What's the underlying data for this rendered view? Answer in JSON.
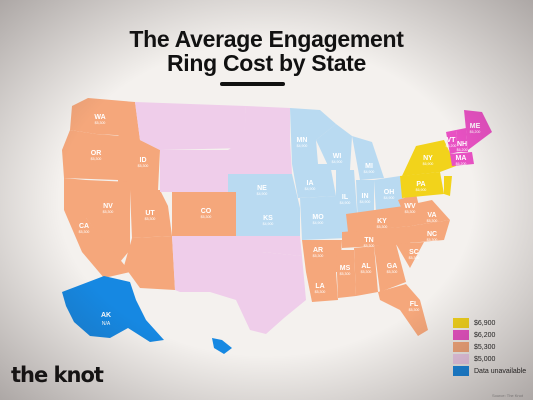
{
  "title_line1": "The Average Engagement",
  "title_line2": "Ring Cost by State",
  "brand": "the knot",
  "credit": "Source: The Knot",
  "colors": {
    "c6900": "#f2d31b",
    "c6200": "#e851c3",
    "c5300": "#f5a77b",
    "c5000": "#efcdea",
    "c4900": "#b9daf1",
    "cna": "#1688e2"
  },
  "legend": [
    {
      "label": "$6,900",
      "color": "#f2d31b"
    },
    {
      "label": "$6,200",
      "color": "#e851c3"
    },
    {
      "label": "$5,300",
      "color": "#f5a77b"
    },
    {
      "label": "$5,000",
      "color": "#efcdea"
    },
    {
      "label": "Data unavailable",
      "color": "#1688e2"
    }
  ],
  "states": [
    {
      "abbr": "WA",
      "value": "$5,300"
    },
    {
      "abbr": "OR",
      "value": "$5,300"
    },
    {
      "abbr": "ID",
      "value": "$5,300"
    },
    {
      "abbr": "NV",
      "value": "$5,300"
    },
    {
      "abbr": "CA",
      "value": "$5,300"
    },
    {
      "abbr": "UT",
      "value": "$5,300"
    },
    {
      "abbr": "CO",
      "value": "$5,300"
    },
    {
      "abbr": "MN",
      "value": "$4,900"
    },
    {
      "abbr": "WI",
      "value": "$4,900"
    },
    {
      "abbr": "IA",
      "value": "$4,900"
    },
    {
      "abbr": "NE",
      "value": "$4,900"
    },
    {
      "abbr": "KS",
      "value": "$4,900"
    },
    {
      "abbr": "MO",
      "value": "$4,900"
    },
    {
      "abbr": "IL",
      "value": "$4,900"
    },
    {
      "abbr": "MI",
      "value": "$4,900"
    },
    {
      "abbr": "IN",
      "value": "$4,900"
    },
    {
      "abbr": "OH",
      "value": "$4,900"
    },
    {
      "abbr": "AR",
      "value": "$5,300"
    },
    {
      "abbr": "LA",
      "value": "$5,300"
    },
    {
      "abbr": "MS",
      "value": "$5,300"
    },
    {
      "abbr": "AL",
      "value": "$5,300"
    },
    {
      "abbr": "TN",
      "value": "$5,300"
    },
    {
      "abbr": "KY",
      "value": "$5,300"
    },
    {
      "abbr": "GA",
      "value": "$5,300"
    },
    {
      "abbr": "FL",
      "value": "$5,300"
    },
    {
      "abbr": "SC",
      "value": "$5,300"
    },
    {
      "abbr": "NC",
      "value": "$5,300"
    },
    {
      "abbr": "VA",
      "value": "$5,300"
    },
    {
      "abbr": "WV",
      "value": "$5,300"
    },
    {
      "abbr": "PA",
      "value": "$6,900"
    },
    {
      "abbr": "NY",
      "value": "$6,900"
    },
    {
      "abbr": "VT",
      "value": "$6,200"
    },
    {
      "abbr": "NH",
      "value": "$6,200"
    },
    {
      "abbr": "ME",
      "value": "$6,200"
    },
    {
      "abbr": "MA",
      "value": "$6,200"
    },
    {
      "abbr": "AK",
      "value": "N/A"
    }
  ]
}
